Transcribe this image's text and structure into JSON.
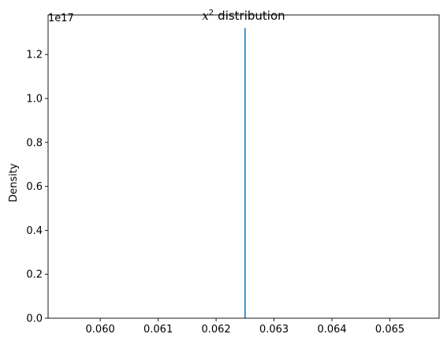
{
  "chart_data": {
    "type": "line",
    "title": "distribution",
    "title_math": "x",
    "title_math_exponent": "2",
    "xlabel": "",
    "ylabel": "Density",
    "y_offset_label": "1e17",
    "xlim": [
      0.0591,
      0.06585
    ],
    "ylim": [
      0,
      1.38
    ],
    "xticks": [
      {
        "value": 0.06,
        "label": "0.060"
      },
      {
        "value": 0.061,
        "label": "0.061"
      },
      {
        "value": 0.062,
        "label": "0.062"
      },
      {
        "value": 0.063,
        "label": "0.063"
      },
      {
        "value": 0.064,
        "label": "0.064"
      },
      {
        "value": 0.065,
        "label": "0.065"
      }
    ],
    "yticks": [
      {
        "value": 0.0,
        "label": "0.0"
      },
      {
        "value": 0.2,
        "label": "0.2"
      },
      {
        "value": 0.4,
        "label": "0.4"
      },
      {
        "value": 0.6,
        "label": "0.6"
      },
      {
        "value": 0.8,
        "label": "0.8"
      },
      {
        "value": 1.0,
        "label": "1.0"
      },
      {
        "value": 1.2,
        "label": "1.2"
      }
    ],
    "series": [
      {
        "color": "#1f77b4",
        "x": [
          0.0625,
          0.0625
        ],
        "y": [
          0,
          1.32
        ]
      }
    ],
    "grid": false,
    "legend": "none"
  }
}
